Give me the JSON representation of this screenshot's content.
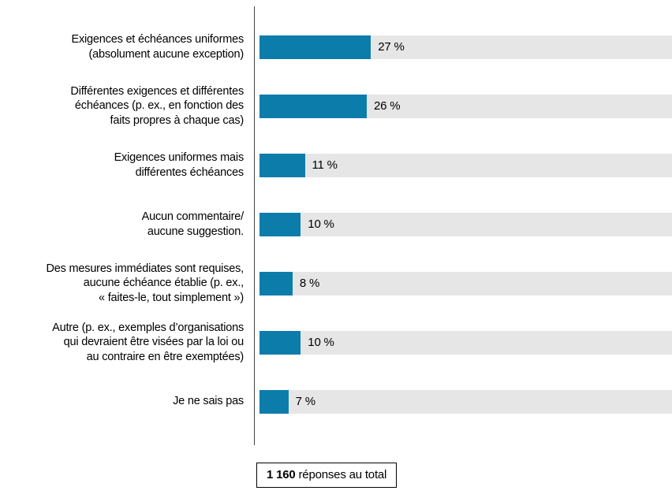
{
  "chart_data": {
    "type": "bar",
    "orientation": "horizontal",
    "title": "",
    "xlabel": "",
    "ylabel": "",
    "xlim": [
      0,
      100
    ],
    "grid": false,
    "legend": false,
    "bar_color": "#0c7cab",
    "track_color": "#e6e6e6",
    "categories": [
      "Exigences et échéances uniformes\n(absolument aucune exception)",
      "Différentes exigences et différentes\néchéances (p. ex., en fonction des\nfaits propres à chaque cas)",
      "Exigences uniformes mais\ndifférentes échéances",
      "Aucun commentaire/\naucune suggestion.",
      "Des mesures immédiates sont requises,\naucune échéance établie (p. ex.,\n« faites-le, tout simplement »)",
      "Autre (p. ex., exemples d’organisations\nqui devraient être visées par la loi ou\nau contraire en être exemptées)",
      "Je ne sais pas"
    ],
    "values": [
      27,
      26,
      11,
      10,
      8,
      10,
      7
    ],
    "value_labels": [
      "27 %",
      "26 %",
      "11 %",
      "10 %",
      "8 %",
      "10 %",
      "7 %"
    ],
    "footer": {
      "total": "1 160",
      "suffix": " réponses au total"
    }
  }
}
